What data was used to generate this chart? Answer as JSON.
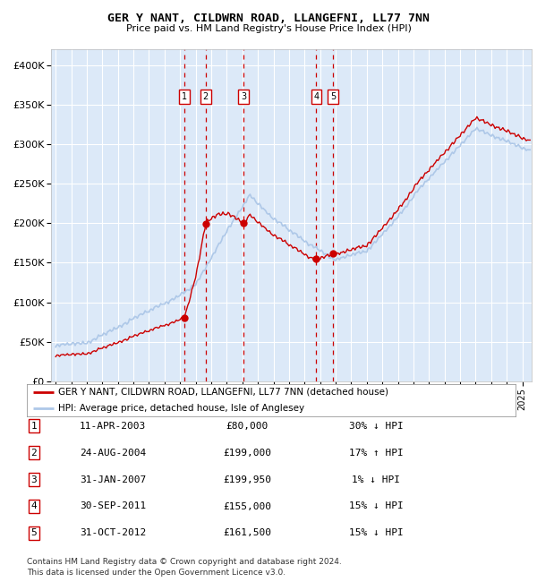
{
  "title": "GER Y NANT, CILDWRN ROAD, LLANGEFNI, LL77 7NN",
  "subtitle": "Price paid vs. HM Land Registry's House Price Index (HPI)",
  "bg_color": "#dce9f8",
  "plot_bg": "#dce9f8",
  "grid_color": "#ffffff",
  "hpi_color": "#aec8e8",
  "price_color": "#cc0000",
  "ylim": [
    0,
    420000
  ],
  "yticks": [
    0,
    50000,
    100000,
    150000,
    200000,
    250000,
    300000,
    350000,
    400000
  ],
  "ytick_labels": [
    "£0",
    "£50K",
    "£100K",
    "£150K",
    "£200K",
    "£250K",
    "£300K",
    "£350K",
    "£400K"
  ],
  "xlim_start": 1994.7,
  "xlim_end": 2025.6,
  "sales": [
    {
      "num": 1,
      "date": "11-APR-2003",
      "price": 80000,
      "pct": "30%",
      "dir": "↓",
      "x_year": 2003.27
    },
    {
      "num": 2,
      "date": "24-AUG-2004",
      "price": 199000,
      "pct": "17%",
      "dir": "↑",
      "x_year": 2004.64
    },
    {
      "num": 3,
      "date": "31-JAN-2007",
      "price": 199950,
      "pct": "1%",
      "dir": "↓",
      "x_year": 2007.08
    },
    {
      "num": 4,
      "date": "30-SEP-2011",
      "price": 155000,
      "pct": "15%",
      "dir": "↓",
      "x_year": 2011.75
    },
    {
      "num": 5,
      "date": "31-OCT-2012",
      "price": 161500,
      "pct": "15%",
      "dir": "↓",
      "x_year": 2012.83
    }
  ],
  "legend_house_label": "GER Y NANT, CILDWRN ROAD, LLANGEFNI, LL77 7NN (detached house)",
  "legend_hpi_label": "HPI: Average price, detached house, Isle of Anglesey",
  "footnote1": "Contains HM Land Registry data © Crown copyright and database right 2024.",
  "footnote2": "This data is licensed under the Open Government Licence v3.0."
}
